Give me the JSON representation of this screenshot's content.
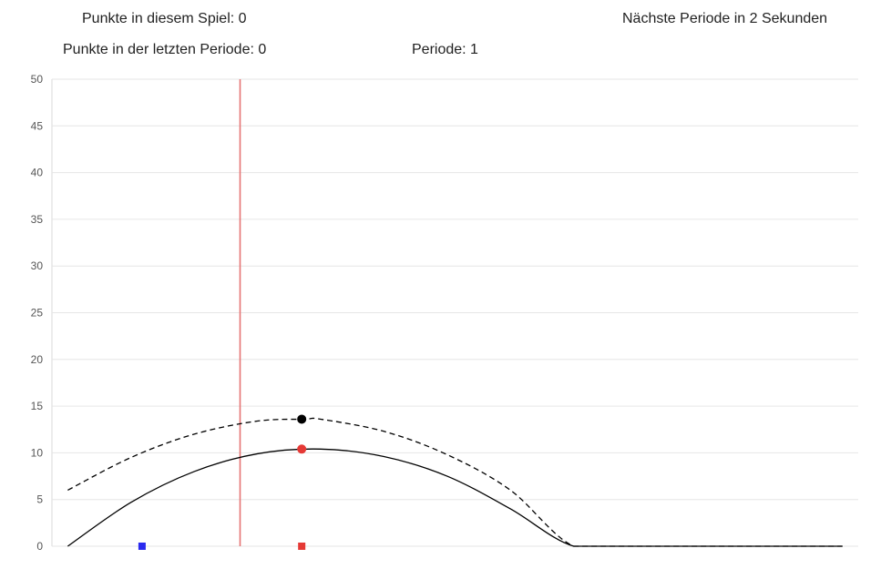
{
  "header": {
    "game_points": "Punkte in diesem Spiel: 0",
    "next_period": "Nächste Periode in 2 Sekunden",
    "last_period_points": "Punkte in der letzten Periode: 0",
    "period": "Periode: 1"
  },
  "chart_data": {
    "type": "line",
    "title": "",
    "xlabel": "",
    "ylabel": "",
    "xlim": [
      -1,
      50
    ],
    "ylim": [
      0,
      50
    ],
    "yticks": [
      0,
      5,
      10,
      15,
      20,
      25,
      30,
      35,
      40,
      45,
      50
    ],
    "grid": true,
    "legend": "none",
    "series": [
      {
        "style": "solid",
        "color": "#000000",
        "points": [
          [
            0,
            0
          ],
          [
            4,
            4.7
          ],
          [
            8,
            8.0
          ],
          [
            12,
            9.9
          ],
          [
            16,
            10.4
          ],
          [
            20,
            9.6
          ],
          [
            24,
            7.5
          ],
          [
            28,
            4.0
          ],
          [
            32,
            0
          ],
          [
            36,
            0
          ],
          [
            40,
            0
          ],
          [
            44,
            0
          ],
          [
            49,
            0
          ]
        ]
      },
      {
        "style": "dashed",
        "color": "#000000",
        "points": [
          [
            0,
            6.0
          ],
          [
            4,
            9.5
          ],
          [
            8,
            12.0
          ],
          [
            12,
            13.4
          ],
          [
            15,
            13.6
          ],
          [
            16,
            13.6
          ],
          [
            20,
            12.3
          ],
          [
            24,
            9.8
          ],
          [
            28,
            6.0
          ],
          [
            32,
            0
          ],
          [
            36,
            0
          ],
          [
            40,
            0
          ],
          [
            44,
            0
          ],
          [
            49,
            0
          ]
        ]
      }
    ],
    "markers": [
      {
        "shape": "circle",
        "color": "#000000",
        "x": 14.8,
        "y": 13.6
      },
      {
        "shape": "circle",
        "color": "#e53935",
        "x": 14.8,
        "y": 10.4
      },
      {
        "shape": "square",
        "color": "#2a2aef",
        "x": 4.7,
        "y": 0
      },
      {
        "shape": "square",
        "color": "#e53935",
        "x": 14.8,
        "y": 0
      }
    ],
    "vline": {
      "x": 10.9,
      "color": "#e57373"
    }
  }
}
